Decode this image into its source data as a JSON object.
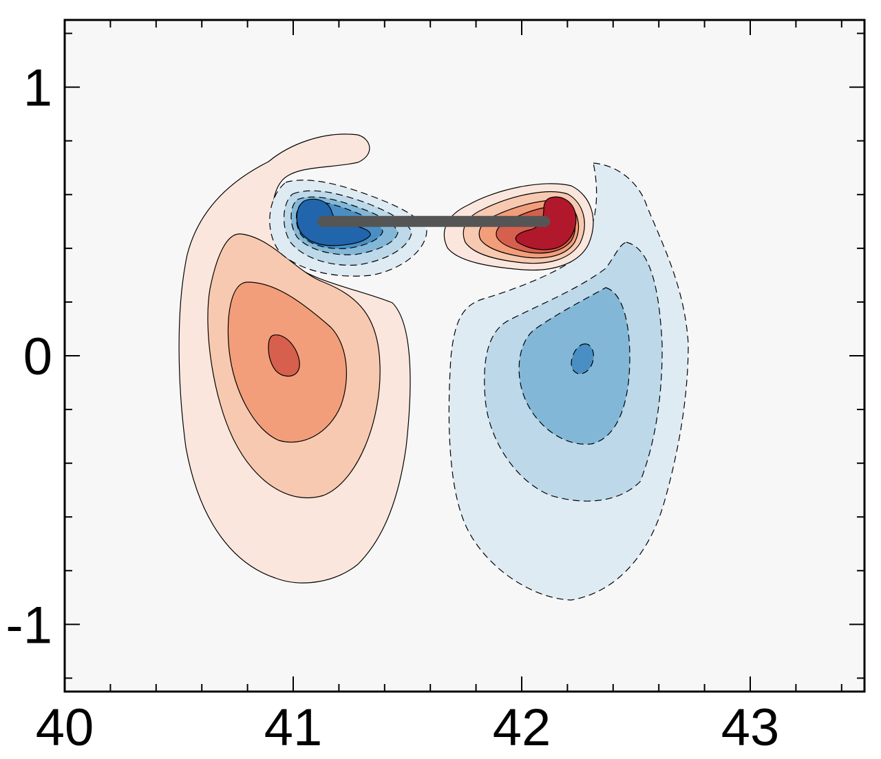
{
  "chart_data": {
    "type": "contour",
    "title": "",
    "xlabel": "",
    "ylabel": "",
    "xlim": [
      40,
      43.5
    ],
    "ylim": [
      -1.25,
      1.25
    ],
    "x_ticks": [
      40,
      41,
      42,
      43
    ],
    "y_ticks": [
      -1,
      0,
      1
    ],
    "x_tick_labels": [
      "40",
      "41",
      "42",
      "43"
    ],
    "y_tick_labels": [
      "-1",
      "0",
      "1"
    ],
    "x_minor_step": 0.2,
    "y_minor_step": 0.2,
    "grid": false,
    "legend": "none",
    "background_color": "#f7f7f7",
    "colors": {
      "neg1": "#deebf3",
      "neg2": "#bcd8e9",
      "neg3": "#82b7d7",
      "neg4": "#4a8fc3",
      "neg5": "#2166ac",
      "pos1": "#fae6dc",
      "pos2": "#f7c9b0",
      "pos3": "#f29e7a",
      "pos4": "#d6604d",
      "pos5": "#b2182b",
      "plate": "#555555"
    },
    "plate": {
      "x": [
        41.13,
        42.1
      ],
      "y": [
        0.5,
        0.5
      ]
    },
    "vortices": [
      {
        "name": "",
        "sign": "positive",
        "center": [
          40.95,
          0.0
        ]
      },
      {
        "name": "",
        "sign": "negative",
        "center": [
          42.28,
          -0.02
        ]
      },
      {
        "name": "",
        "sign": "negative",
        "center": [
          41.1,
          0.5
        ]
      },
      {
        "name": "",
        "sign": "positive",
        "center": [
          42.2,
          0.5
        ]
      }
    ]
  }
}
